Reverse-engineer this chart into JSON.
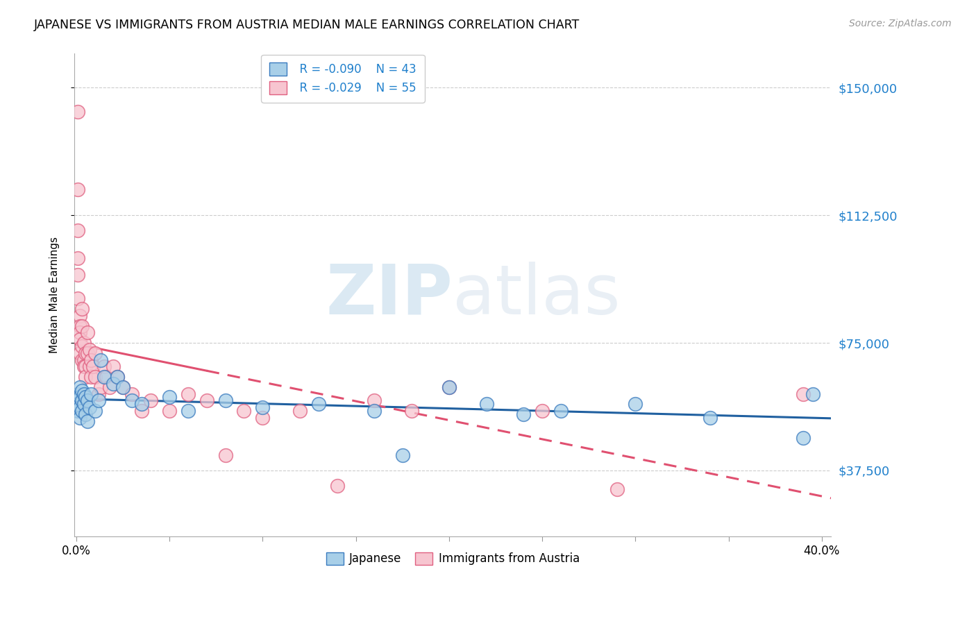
{
  "title": "JAPANESE VS IMMIGRANTS FROM AUSTRIA MEDIAN MALE EARNINGS CORRELATION CHART",
  "source": "Source: ZipAtlas.com",
  "ylabel": "Median Male Earnings",
  "watermark_zip": "ZIP",
  "watermark_atlas": "atlas",
  "y_ticks": [
    37500,
    75000,
    112500,
    150000
  ],
  "y_tick_labels": [
    "$37,500",
    "$75,000",
    "$112,500",
    "$150,000"
  ],
  "y_min": 18000,
  "y_max": 160000,
  "x_min": -0.001,
  "x_max": 0.405,
  "legend_japanese_r": "R = -0.090",
  "legend_japanese_n": "N = 43",
  "legend_austria_r": "R = -0.029",
  "legend_austria_n": "N = 55",
  "japanese_color": "#a8cfe8",
  "austria_color": "#f7c5d0",
  "japanese_edge_color": "#3a7bbf",
  "austria_edge_color": "#e06080",
  "japanese_line_color": "#2060a0",
  "austria_line_color": "#e05070",
  "japanese_scatter": {
    "x": [
      0.001,
      0.001,
      0.001,
      0.001,
      0.002,
      0.002,
      0.002,
      0.002,
      0.003,
      0.003,
      0.003,
      0.004,
      0.004,
      0.005,
      0.005,
      0.006,
      0.006,
      0.007,
      0.008,
      0.01,
      0.012,
      0.013,
      0.015,
      0.02,
      0.022,
      0.025,
      0.03,
      0.035,
      0.05,
      0.06,
      0.08,
      0.1,
      0.13,
      0.16,
      0.175,
      0.2,
      0.22,
      0.24,
      0.26,
      0.3,
      0.34,
      0.39,
      0.395
    ],
    "y": [
      60000,
      58000,
      55000,
      57000,
      62000,
      59000,
      56000,
      53000,
      61000,
      58000,
      55000,
      60000,
      57000,
      59000,
      54000,
      58000,
      52000,
      56000,
      60000,
      55000,
      58000,
      70000,
      65000,
      63000,
      65000,
      62000,
      58000,
      57000,
      59000,
      55000,
      58000,
      56000,
      57000,
      55000,
      42000,
      62000,
      57000,
      54000,
      55000,
      57000,
      53000,
      47000,
      60000
    ]
  },
  "austria_scatter": {
    "x": [
      0.001,
      0.001,
      0.001,
      0.001,
      0.001,
      0.001,
      0.002,
      0.002,
      0.002,
      0.002,
      0.002,
      0.003,
      0.003,
      0.003,
      0.003,
      0.004,
      0.004,
      0.004,
      0.005,
      0.005,
      0.005,
      0.006,
      0.006,
      0.007,
      0.007,
      0.008,
      0.008,
      0.009,
      0.01,
      0.01,
      0.012,
      0.013,
      0.015,
      0.016,
      0.018,
      0.02,
      0.022,
      0.025,
      0.03,
      0.035,
      0.04,
      0.05,
      0.06,
      0.07,
      0.08,
      0.09,
      0.1,
      0.12,
      0.14,
      0.16,
      0.18,
      0.2,
      0.25,
      0.29,
      0.39
    ],
    "y": [
      143000,
      120000,
      108000,
      100000,
      95000,
      88000,
      83000,
      80000,
      78000,
      76000,
      72000,
      85000,
      80000,
      74000,
      70000,
      75000,
      70000,
      68000,
      72000,
      68000,
      65000,
      78000,
      72000,
      73000,
      68000,
      70000,
      65000,
      68000,
      72000,
      65000,
      60000,
      62000,
      68000,
      65000,
      62000,
      68000,
      65000,
      62000,
      60000,
      55000,
      58000,
      55000,
      60000,
      58000,
      42000,
      55000,
      53000,
      55000,
      33000,
      58000,
      55000,
      62000,
      55000,
      32000,
      60000
    ]
  }
}
